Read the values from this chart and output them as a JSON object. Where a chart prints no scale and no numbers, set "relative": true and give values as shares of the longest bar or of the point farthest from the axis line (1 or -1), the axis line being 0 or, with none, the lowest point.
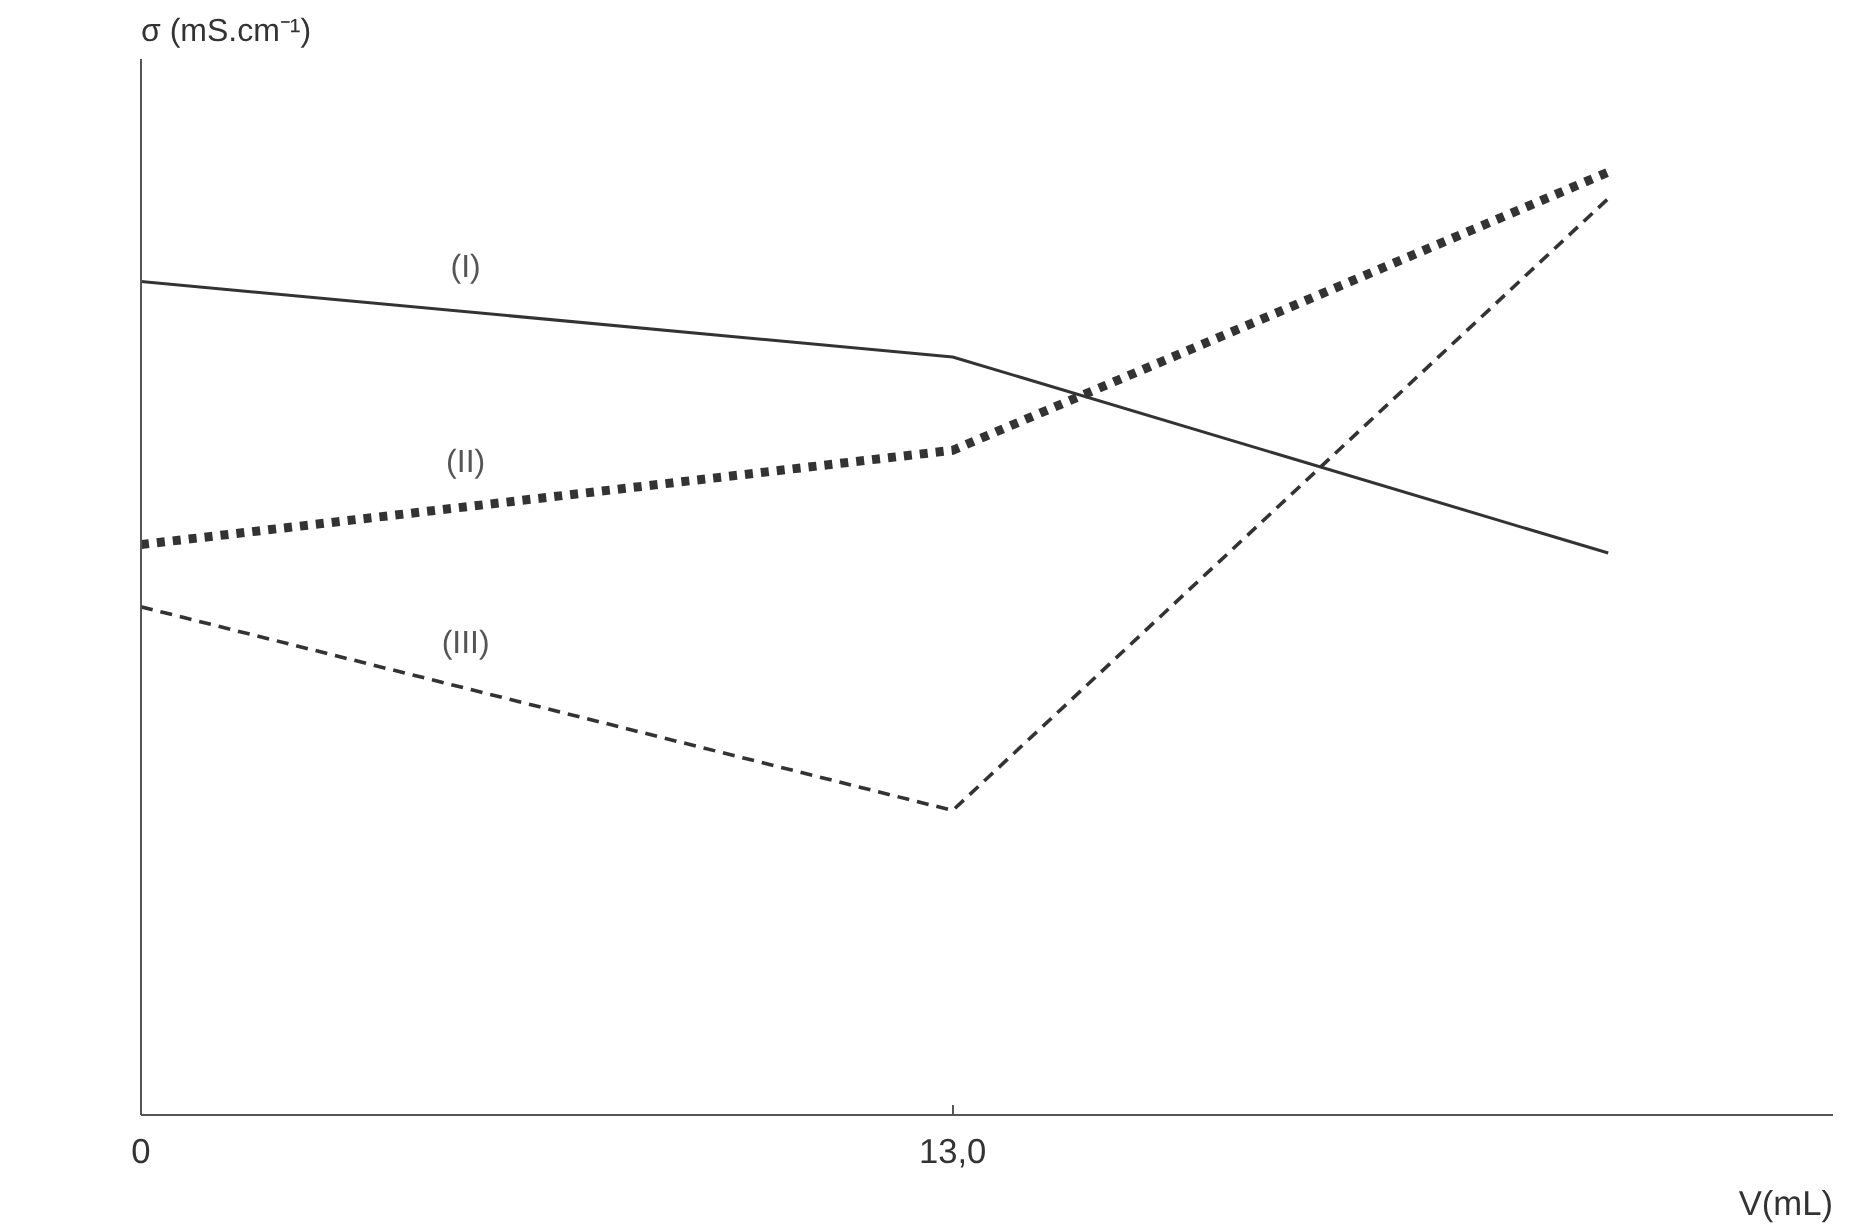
{
  "chart_data": {
    "type": "line",
    "relative": true,
    "xlabel": "V(mL)",
    "ylabel": "σ (mS.cm⁻¹)",
    "xlim": [
      0,
      27.1
    ],
    "xticks": [
      0,
      {
        "value": 13,
        "label": "13,0"
      }
    ],
    "tick_labels": "x",
    "grid": false,
    "marker": "none",
    "series": [
      {
        "name": "(I)",
        "color": "#333333",
        "line_style": "solid",
        "x": [
          0,
          13,
          23.5
        ],
        "values": [
          0.884,
          0.804,
          0.596
        ]
      },
      {
        "name": "(II)",
        "color": "#333333",
        "line_style": "dotted",
        "x": [
          0,
          13,
          23.5
        ],
        "values": [
          0.605,
          0.705,
          1.0
        ]
      },
      {
        "name": "(III)",
        "color": "#333333",
        "line_style": "dashed",
        "x": [
          0,
          13,
          23.5
        ],
        "values": [
          0.539,
          0.323,
          0.972
        ]
      }
    ]
  }
}
